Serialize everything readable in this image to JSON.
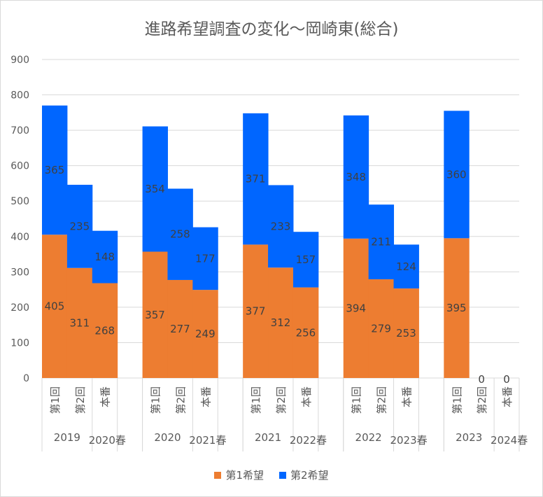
{
  "chart_data": {
    "type": "bar",
    "stacked": true,
    "title": "進路希望調査の変化～岡崎東(総合)",
    "xlabel": "",
    "ylabel": "",
    "ylim": [
      0,
      900
    ],
    "yticks": [
      0,
      100,
      200,
      300,
      400,
      500,
      600,
      700,
      800,
      900
    ],
    "grid": true,
    "legend_position": "bottom",
    "groups": [
      {
        "label": "2019",
        "label2": "2020春",
        "categories": [
          "第1回",
          "第2回",
          "本番"
        ]
      },
      {
        "label": "2020",
        "label2": "2021春",
        "categories": [
          "第1回",
          "第2回",
          "本番"
        ]
      },
      {
        "label": "2021",
        "label2": "2022春",
        "categories": [
          "第1回",
          "第2回",
          "本番"
        ]
      },
      {
        "label": "2022",
        "label2": "2023春",
        "categories": [
          "第1回",
          "第2回",
          "本番"
        ]
      },
      {
        "label": "2023",
        "label2": "2024春",
        "categories": [
          "第1回",
          "第2回",
          "本番"
        ]
      }
    ],
    "series": [
      {
        "name": "第1希望",
        "color": "#ED7D31",
        "values": [
          [
            405,
            311,
            268
          ],
          [
            357,
            277,
            249
          ],
          [
            377,
            312,
            256
          ],
          [
            394,
            279,
            253
          ],
          [
            395,
            0,
            0
          ]
        ]
      },
      {
        "name": "第2希望",
        "color": "#0066FF",
        "values": [
          [
            365,
            235,
            148
          ],
          [
            354,
            258,
            177
          ],
          [
            371,
            233,
            157
          ],
          [
            348,
            211,
            124
          ],
          [
            360,
            null,
            null
          ]
        ]
      }
    ]
  }
}
